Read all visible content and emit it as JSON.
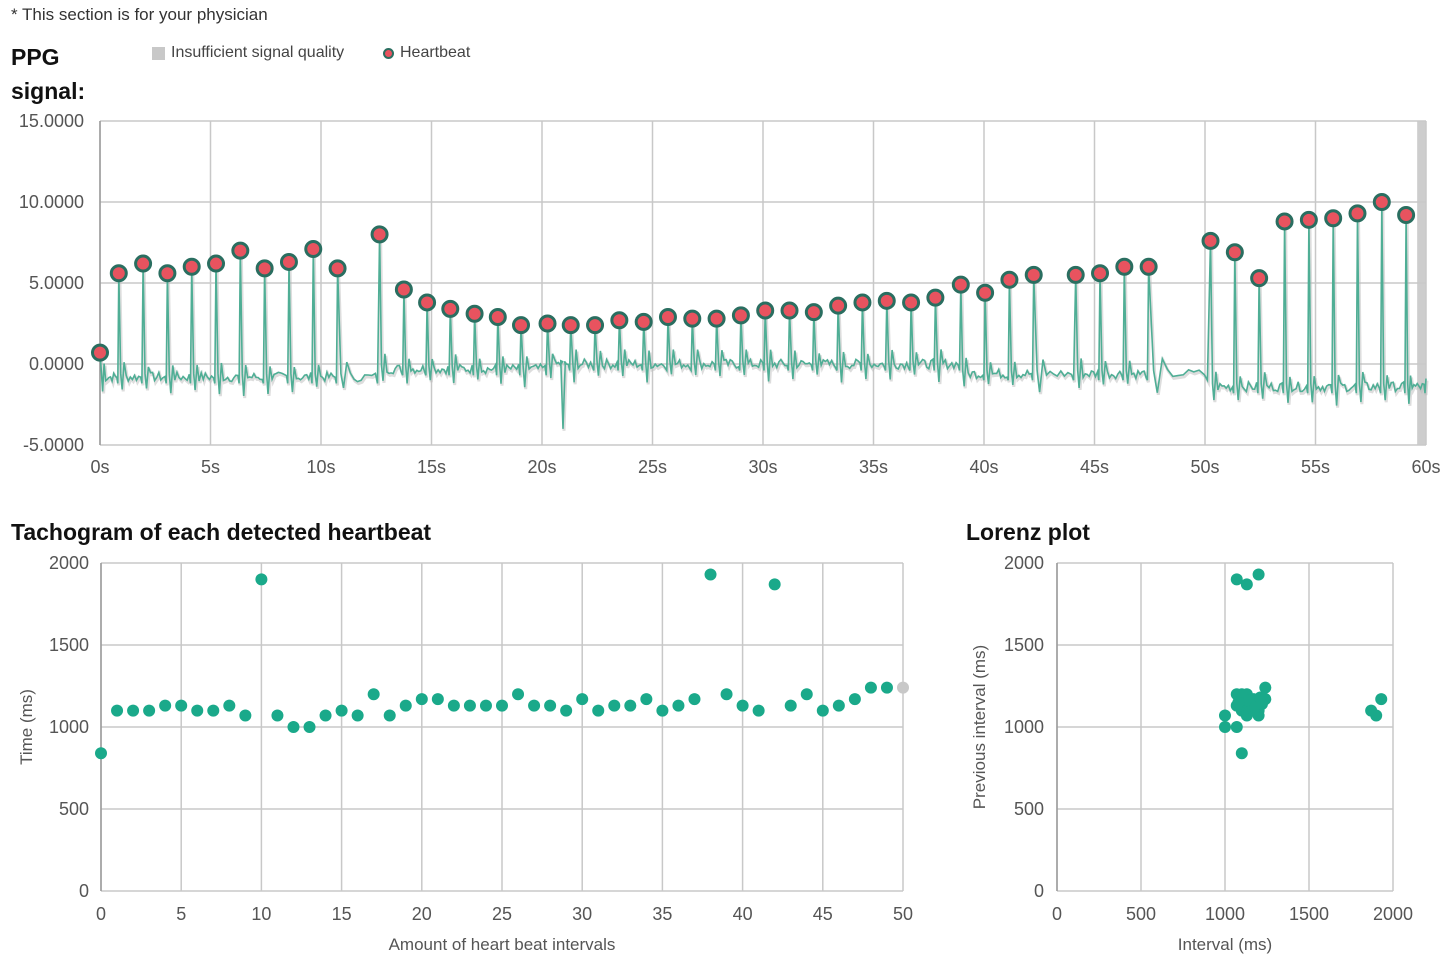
{
  "note": "* This section is for your physician",
  "ppg": {
    "title": "PPG signal:",
    "legend": {
      "insufficient": "Insufficient signal quality",
      "heartbeat": "Heartbeat"
    }
  },
  "tachogram_title": "Tachogram of each detected heartbeat",
  "lorenz_title": "Lorenz plot",
  "colors": {
    "signal": "#4fae95",
    "beat_fill": "#e8535f",
    "beat_stroke": "#2a6e60",
    "point": "#1aa98a",
    "grid": "#c8c8c8",
    "insufficient": "#c8c8c8"
  },
  "chart_data": [
    {
      "type": "line",
      "id": "ppg",
      "xlim": [
        0,
        60
      ],
      "ylim": [
        -5,
        15
      ],
      "x_ticks": [
        0,
        5,
        10,
        15,
        20,
        25,
        30,
        35,
        40,
        45,
        50,
        55,
        60
      ],
      "x_tick_labels": [
        "0s",
        "5s",
        "10s",
        "15s",
        "20s",
        "25s",
        "30s",
        "35s",
        "40s",
        "45s",
        "50s",
        "55s",
        "60s"
      ],
      "y_ticks": [
        15,
        10,
        5,
        0,
        -5
      ],
      "y_tick_labels": [
        "15.0000",
        "10.0000",
        "5.0000",
        "0.0000",
        "-5.0000"
      ],
      "insufficient_ranges": [
        [
          59.6,
          60
        ]
      ],
      "heartbeats": [
        [
          0.0,
          0.7
        ],
        [
          0.85,
          5.6
        ],
        [
          1.95,
          6.2
        ],
        [
          3.05,
          5.6
        ],
        [
          4.15,
          6.0
        ],
        [
          5.25,
          6.2
        ],
        [
          6.35,
          7.0
        ],
        [
          7.45,
          5.9
        ],
        [
          8.55,
          6.3
        ],
        [
          9.65,
          7.1
        ],
        [
          10.75,
          5.9
        ],
        [
          12.65,
          8.0
        ],
        [
          13.75,
          4.6
        ],
        [
          14.8,
          3.8
        ],
        [
          15.85,
          3.4
        ],
        [
          16.95,
          3.1
        ],
        [
          18.0,
          2.9
        ],
        [
          19.05,
          2.4
        ],
        [
          20.25,
          2.5
        ],
        [
          21.3,
          2.4
        ],
        [
          22.4,
          2.4
        ],
        [
          23.5,
          2.7
        ],
        [
          24.6,
          2.6
        ],
        [
          25.7,
          2.9
        ],
        [
          26.8,
          2.8
        ],
        [
          27.9,
          2.8
        ],
        [
          29.0,
          3.0
        ],
        [
          30.1,
          3.3
        ],
        [
          31.2,
          3.3
        ],
        [
          32.3,
          3.2
        ],
        [
          33.4,
          3.6
        ],
        [
          34.5,
          3.8
        ],
        [
          35.6,
          3.9
        ],
        [
          36.7,
          3.8
        ],
        [
          37.8,
          4.1
        ],
        [
          38.95,
          4.9
        ],
        [
          40.05,
          4.4
        ],
        [
          41.15,
          5.2
        ],
        [
          42.25,
          5.5
        ],
        [
          44.15,
          5.5
        ],
        [
          45.25,
          5.6
        ],
        [
          46.35,
          6.0
        ],
        [
          47.45,
          6.0
        ],
        [
          50.25,
          7.6
        ],
        [
          51.35,
          6.9
        ],
        [
          52.45,
          5.3
        ],
        [
          53.6,
          8.8
        ],
        [
          54.7,
          8.9
        ],
        [
          55.8,
          9.0
        ],
        [
          56.9,
          9.3
        ],
        [
          58.0,
          10.0
        ],
        [
          59.1,
          9.2
        ]
      ]
    },
    {
      "type": "scatter",
      "id": "tachogram",
      "title": "Tachogram of each detected heartbeat",
      "xlabel": "Amount of heart beat intervals",
      "ylabel": "Time (ms)",
      "xlim": [
        0,
        50
      ],
      "ylim": [
        0,
        2000
      ],
      "x_ticks": [
        0,
        5,
        10,
        15,
        20,
        25,
        30,
        35,
        40,
        45,
        50
      ],
      "y_ticks": [
        2000,
        1500,
        1000,
        500,
        0
      ],
      "x": [
        0,
        1,
        2,
        3,
        4,
        5,
        6,
        7,
        8,
        9,
        10,
        11,
        12,
        13,
        14,
        15,
        16,
        17,
        18,
        19,
        20,
        21,
        22,
        23,
        24,
        25,
        26,
        27,
        28,
        29,
        30,
        31,
        32,
        33,
        34,
        35,
        36,
        37,
        38,
        39,
        40,
        41,
        42,
        43,
        44,
        45,
        46,
        47,
        48,
        49
      ],
      "y": [
        840,
        1100,
        1100,
        1100,
        1130,
        1130,
        1100,
        1100,
        1130,
        1070,
        1900,
        1070,
        1000,
        1000,
        1070,
        1100,
        1070,
        1200,
        1070,
        1130,
        1170,
        1170,
        1130,
        1130,
        1130,
        1130,
        1200,
        1130,
        1130,
        1100,
        1170,
        1100,
        1130,
        1130,
        1170,
        1100,
        1130,
        1170,
        1930,
        1200,
        1130,
        1100,
        1870,
        1130,
        1200,
        1100,
        1130,
        1170,
        1240,
        1240
      ],
      "trailing_point": [
        50,
        1240
      ]
    },
    {
      "type": "scatter",
      "id": "lorenz",
      "title": "Lorenz plot",
      "xlabel": "Interval (ms)",
      "ylabel": "Previous interval (ms)",
      "xlim": [
        0,
        2000
      ],
      "ylim": [
        0,
        2000
      ],
      "x_ticks": [
        0,
        500,
        1000,
        1500,
        2000
      ],
      "y_ticks": [
        2000,
        1500,
        1000,
        500,
        0
      ],
      "points": [
        [
          1070,
          1900
        ],
        [
          1130,
          1870
        ],
        [
          1200,
          1930
        ],
        [
          1100,
          840
        ],
        [
          1000,
          1000
        ],
        [
          1000,
          1070
        ],
        [
          1070,
          1000
        ],
        [
          1900,
          1070
        ],
        [
          1870,
          1100
        ],
        [
          1930,
          1170
        ],
        [
          1240,
          1240
        ],
        [
          1240,
          1170
        ],
        [
          1100,
          1100
        ],
        [
          1130,
          1100
        ],
        [
          1100,
          1130
        ],
        [
          1130,
          1130
        ],
        [
          1070,
          1130
        ],
        [
          1130,
          1070
        ],
        [
          1170,
          1130
        ],
        [
          1130,
          1170
        ],
        [
          1200,
          1130
        ],
        [
          1130,
          1200
        ],
        [
          1170,
          1170
        ],
        [
          1200,
          1100
        ],
        [
          1100,
          1200
        ],
        [
          1070,
          1200
        ],
        [
          1200,
          1070
        ],
        [
          1170,
          1100
        ],
        [
          1100,
          1170
        ],
        [
          1130,
          1150
        ],
        [
          1150,
          1130
        ],
        [
          1160,
          1140
        ],
        [
          1140,
          1160
        ],
        [
          1080,
          1150
        ],
        [
          1180,
          1120
        ],
        [
          1220,
          1140
        ],
        [
          1210,
          1180
        ]
      ]
    }
  ]
}
